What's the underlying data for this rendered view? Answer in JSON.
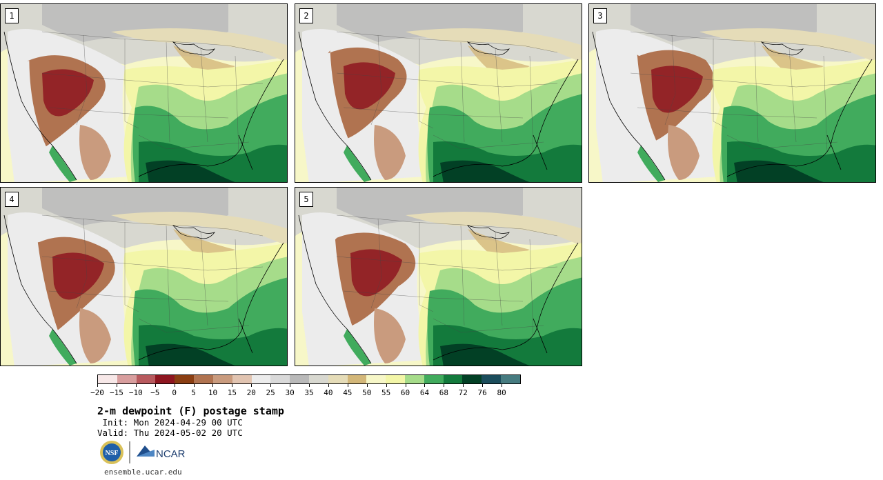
{
  "panels": [
    {
      "label": "1"
    },
    {
      "label": "2"
    },
    {
      "label": "3"
    },
    {
      "label": "4"
    },
    {
      "label": "5"
    }
  ],
  "colorbar": {
    "colors": [
      "#f7e8e8",
      "#d89e9e",
      "#b85a5e",
      "#8e1620",
      "#8a3e12",
      "#b07350",
      "#c99b7e",
      "#e1c4b1",
      "#ececec",
      "#d9d9d9",
      "#b9b9b9",
      "#d8d8d0",
      "#e5dcb8",
      "#d3b779",
      "#f7f7c8",
      "#f3f6a8",
      "#a6dc8a",
      "#41ab5d",
      "#137a3c",
      "#024025",
      "#1b4d5c",
      "#467b80"
    ],
    "tick_labels": [
      "−20",
      "−15",
      "−10",
      "−5",
      "0",
      "5",
      "10",
      "15",
      "20",
      "25",
      "30",
      "35",
      "40",
      "45",
      "50",
      "55",
      "60",
      "64",
      "68",
      "72",
      "76",
      "80"
    ]
  },
  "title": "2-m dewpoint (F) postage stamp",
  "init": " Init: Mon 2024-04-29 00 UTC",
  "valid": "Valid: Thu 2024-05-02 20 UTC",
  "logos": {
    "nsf": "NSF",
    "ncar": "NCAR"
  },
  "url": "ensemble.ucar.edu"
}
